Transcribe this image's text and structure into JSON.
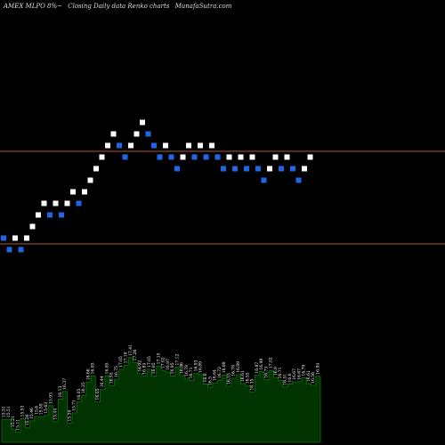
{
  "header": {
    "symbol": "AMEX  MLPO 8%~",
    "chart_kind": "Closing Daily data  Renko  charts",
    "site": "MunafaSutra.com"
  },
  "colors": {
    "background": "#000000",
    "up_brick": "#ffffff",
    "down_brick": "#1e66e6",
    "reference_line": "#b05a1e",
    "volume_fill": "#003300",
    "volume_line": "#0f6f0f",
    "label_text": "#ffffff"
  },
  "chart_data": [
    {
      "type": "renko",
      "reference_lines": [
        17.0,
        15.4
      ],
      "bricks": [
        {
          "y": 15.5,
          "dir": "down"
        },
        {
          "y": 15.3,
          "dir": "down"
        },
        {
          "y": 15.5,
          "dir": "up"
        },
        {
          "y": 15.3,
          "dir": "down"
        },
        {
          "y": 15.5,
          "dir": "up"
        },
        {
          "y": 15.7,
          "dir": "up"
        },
        {
          "y": 15.9,
          "dir": "up"
        },
        {
          "y": 16.1,
          "dir": "up"
        },
        {
          "y": 15.9,
          "dir": "down"
        },
        {
          "y": 16.1,
          "dir": "up"
        },
        {
          "y": 15.9,
          "dir": "down"
        },
        {
          "y": 16.1,
          "dir": "up"
        },
        {
          "y": 16.3,
          "dir": "up"
        },
        {
          "y": 16.1,
          "dir": "down"
        },
        {
          "y": 16.3,
          "dir": "up"
        },
        {
          "y": 16.5,
          "dir": "up"
        },
        {
          "y": 16.7,
          "dir": "up"
        },
        {
          "y": 16.9,
          "dir": "up"
        },
        {
          "y": 17.1,
          "dir": "up"
        },
        {
          "y": 17.3,
          "dir": "up"
        },
        {
          "y": 17.1,
          "dir": "down"
        },
        {
          "y": 16.9,
          "dir": "down"
        },
        {
          "y": 17.1,
          "dir": "up"
        },
        {
          "y": 17.3,
          "dir": "up"
        },
        {
          "y": 17.5,
          "dir": "up"
        },
        {
          "y": 17.3,
          "dir": "down"
        },
        {
          "y": 17.1,
          "dir": "down"
        },
        {
          "y": 16.9,
          "dir": "down"
        },
        {
          "y": 17.1,
          "dir": "up"
        },
        {
          "y": 16.9,
          "dir": "down"
        },
        {
          "y": 16.7,
          "dir": "down"
        },
        {
          "y": 16.9,
          "dir": "up"
        },
        {
          "y": 17.1,
          "dir": "up"
        },
        {
          "y": 16.9,
          "dir": "down"
        },
        {
          "y": 17.1,
          "dir": "up"
        },
        {
          "y": 16.9,
          "dir": "down"
        },
        {
          "y": 17.1,
          "dir": "up"
        },
        {
          "y": 16.9,
          "dir": "down"
        },
        {
          "y": 16.7,
          "dir": "down"
        },
        {
          "y": 16.9,
          "dir": "up"
        },
        {
          "y": 16.7,
          "dir": "down"
        },
        {
          "y": 16.9,
          "dir": "up"
        },
        {
          "y": 16.7,
          "dir": "down"
        },
        {
          "y": 16.9,
          "dir": "up"
        },
        {
          "y": 16.7,
          "dir": "down"
        },
        {
          "y": 16.5,
          "dir": "down"
        },
        {
          "y": 16.7,
          "dir": "up"
        },
        {
          "y": 16.9,
          "dir": "up"
        },
        {
          "y": 16.7,
          "dir": "down"
        },
        {
          "y": 16.9,
          "dir": "up"
        },
        {
          "y": 16.7,
          "dir": "down"
        },
        {
          "y": 16.5,
          "dir": "down"
        },
        {
          "y": 16.7,
          "dir": "up"
        },
        {
          "y": 16.9,
          "dir": "up"
        }
      ]
    },
    {
      "type": "area",
      "labels": [
        "15.51",
        "15.51",
        "15.21",
        "15.11",
        "15.53",
        "15.26",
        "15.46",
        "15.6",
        "15.59",
        "15.63",
        "15.93",
        "15.44",
        "16.13",
        "16.37",
        "15.39",
        "15.71",
        "16.05",
        "16.25",
        "16.66",
        "16.85",
        "16.05",
        "16.44",
        "16.85",
        "16.55",
        "16.75",
        "17.05",
        "17.18",
        "17.41",
        "17.26",
        "16.92",
        "16.84",
        "17.05",
        "16.85",
        "17.15",
        "17.02",
        "16.97",
        "16.85",
        "17.12",
        "16.86",
        "16.78",
        "16.71",
        "16.93",
        "16.89",
        "16.6",
        "16.5",
        "16.64",
        "16.72",
        "16.88",
        "16.53",
        "16.78",
        "16.89",
        "16.61",
        "16.55",
        "16.35",
        "16.87",
        "16.98",
        "16.73",
        "17.02",
        "16.8",
        "16.71",
        "16.51",
        "16.6",
        "16.67",
        "16.67",
        "16.79",
        "16.61",
        "16.56",
        "16.84"
      ],
      "values": [
        15.51,
        15.51,
        15.21,
        15.11,
        15.53,
        15.26,
        15.46,
        15.6,
        15.59,
        15.63,
        15.93,
        15.44,
        16.13,
        16.37,
        15.39,
        15.71,
        16.05,
        16.25,
        16.66,
        16.85,
        16.05,
        16.44,
        16.85,
        16.55,
        16.75,
        17.05,
        17.18,
        17.41,
        17.26,
        16.92,
        16.84,
        17.05,
        16.85,
        17.15,
        17.02,
        16.97,
        16.85,
        17.12,
        16.86,
        16.78,
        16.71,
        16.93,
        16.89,
        16.6,
        16.5,
        16.64,
        16.72,
        16.88,
        16.53,
        16.78,
        16.89,
        16.61,
        16.55,
        16.35,
        16.87,
        16.98,
        16.73,
        17.02,
        16.8,
        16.71,
        16.51,
        16.6,
        16.67,
        16.67,
        16.79,
        16.61,
        16.56,
        16.84
      ],
      "ylim": [
        14.8,
        17.6
      ]
    }
  ]
}
